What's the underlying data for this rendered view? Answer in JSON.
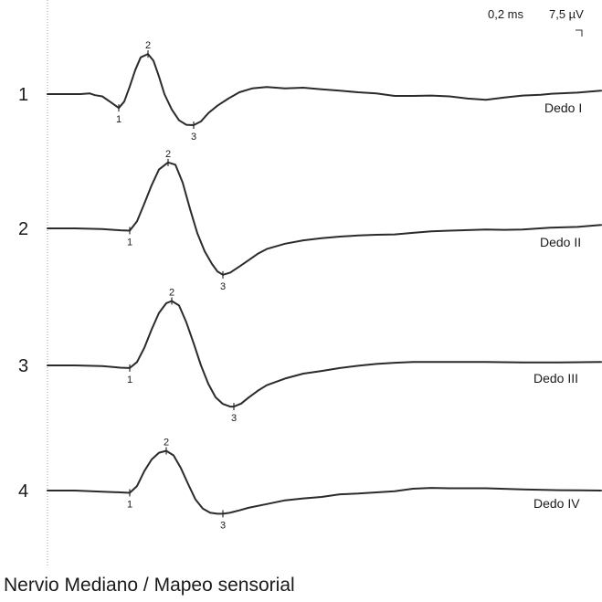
{
  "chart_data": {
    "type": "line",
    "title": "Nervio Mediano / Mapeo sensorial",
    "scale": {
      "time": "0,2 ms",
      "amplitude": "7,5 µV"
    },
    "grid": false,
    "x_unit": "ms",
    "y_unit": "µV",
    "xlim": [
      0,
      3.03
    ],
    "traces": [
      {
        "number": "1",
        "label": "Dedo I",
        "markers": [
          {
            "label": "1",
            "x": 0.39,
            "y": -3.7
          },
          {
            "label": "2",
            "x": 0.55,
            "y": 10.7
          },
          {
            "label": "3",
            "x": 0.8,
            "y": -8.3
          }
        ],
        "points": [
          [
            0.0,
            0.0
          ],
          [
            0.1,
            0.0
          ],
          [
            0.18,
            0.0
          ],
          [
            0.23,
            0.2
          ],
          [
            0.26,
            -0.3
          ],
          [
            0.3,
            -0.6
          ],
          [
            0.35,
            -2.3
          ],
          [
            0.39,
            -3.7
          ],
          [
            0.42,
            -2.0
          ],
          [
            0.45,
            2.0
          ],
          [
            0.48,
            6.4
          ],
          [
            0.51,
            9.8
          ],
          [
            0.55,
            10.7
          ],
          [
            0.58,
            8.9
          ],
          [
            0.61,
            4.7
          ],
          [
            0.64,
            0.0
          ],
          [
            0.68,
            -4.1
          ],
          [
            0.72,
            -7.0
          ],
          [
            0.76,
            -8.2
          ],
          [
            0.8,
            -8.3
          ],
          [
            0.84,
            -7.3
          ],
          [
            0.88,
            -5.1
          ],
          [
            0.93,
            -3.1
          ],
          [
            0.99,
            -1.2
          ],
          [
            1.05,
            0.5
          ],
          [
            1.12,
            1.5
          ],
          [
            1.2,
            1.9
          ],
          [
            1.3,
            1.5
          ],
          [
            1.4,
            1.7
          ],
          [
            1.5,
            1.3
          ],
          [
            1.6,
            0.9
          ],
          [
            1.7,
            0.5
          ],
          [
            1.8,
            0.2
          ],
          [
            1.9,
            -0.5
          ],
          [
            2.0,
            -0.5
          ],
          [
            2.1,
            -0.4
          ],
          [
            2.2,
            -0.6
          ],
          [
            2.3,
            -1.2
          ],
          [
            2.4,
            -1.5
          ],
          [
            2.5,
            -0.9
          ],
          [
            2.6,
            -0.4
          ],
          [
            2.7,
            -0.2
          ],
          [
            2.76,
            0.1
          ],
          [
            2.9,
            0.4
          ],
          [
            3.03,
            0.9
          ]
        ]
      },
      {
        "number": "2",
        "label": "Dedo II",
        "markers": [
          {
            "label": "1",
            "x": 0.45,
            "y": -0.6
          },
          {
            "label": "2",
            "x": 0.66,
            "y": 17.6
          },
          {
            "label": "3",
            "x": 0.96,
            "y": -12.4
          }
        ],
        "points": [
          [
            0.0,
            0.0
          ],
          [
            0.15,
            0.0
          ],
          [
            0.3,
            -0.2
          ],
          [
            0.4,
            -0.5
          ],
          [
            0.45,
            -0.6
          ],
          [
            0.49,
            1.9
          ],
          [
            0.53,
            6.6
          ],
          [
            0.57,
            11.5
          ],
          [
            0.61,
            15.7
          ],
          [
            0.66,
            17.6
          ],
          [
            0.7,
            17.0
          ],
          [
            0.74,
            12.2
          ],
          [
            0.78,
            5.2
          ],
          [
            0.82,
            -1.3
          ],
          [
            0.86,
            -6.1
          ],
          [
            0.9,
            -9.5
          ],
          [
            0.93,
            -11.5
          ],
          [
            0.96,
            -12.4
          ],
          [
            1.0,
            -11.8
          ],
          [
            1.05,
            -10.2
          ],
          [
            1.1,
            -8.5
          ],
          [
            1.15,
            -6.8
          ],
          [
            1.2,
            -5.5
          ],
          [
            1.3,
            -4.1
          ],
          [
            1.4,
            -3.2
          ],
          [
            1.5,
            -2.6
          ],
          [
            1.6,
            -2.2
          ],
          [
            1.7,
            -1.9
          ],
          [
            1.8,
            -1.7
          ],
          [
            1.9,
            -1.6
          ],
          [
            2.0,
            -1.2
          ],
          [
            2.1,
            -0.8
          ],
          [
            2.2,
            -0.6
          ],
          [
            2.4,
            -0.3
          ],
          [
            2.5,
            -0.4
          ],
          [
            2.6,
            -0.3
          ],
          [
            2.75,
            0.2
          ],
          [
            2.9,
            0.4
          ],
          [
            3.03,
            0.9
          ]
        ]
      },
      {
        "number": "3",
        "label": "Dedo III",
        "markers": [
          {
            "label": "1",
            "x": 0.45,
            "y": -0.7
          },
          {
            "label": "2",
            "x": 0.68,
            "y": 17.2
          },
          {
            "label": "3",
            "x": 1.02,
            "y": -11.0
          }
        ],
        "points": [
          [
            0.0,
            0.0
          ],
          [
            0.15,
            0.0
          ],
          [
            0.3,
            -0.2
          ],
          [
            0.4,
            -0.6
          ],
          [
            0.45,
            -0.7
          ],
          [
            0.49,
            0.9
          ],
          [
            0.53,
            4.7
          ],
          [
            0.57,
            9.6
          ],
          [
            0.61,
            14.0
          ],
          [
            0.65,
            16.6
          ],
          [
            0.68,
            17.2
          ],
          [
            0.72,
            16.0
          ],
          [
            0.76,
            11.5
          ],
          [
            0.8,
            5.9
          ],
          [
            0.84,
            0.0
          ],
          [
            0.88,
            -4.9
          ],
          [
            0.92,
            -8.5
          ],
          [
            0.96,
            -10.3
          ],
          [
            1.0,
            -11.0
          ],
          [
            1.02,
            -11.0
          ],
          [
            1.06,
            -10.2
          ],
          [
            1.1,
            -8.6
          ],
          [
            1.15,
            -6.8
          ],
          [
            1.2,
            -5.3
          ],
          [
            1.3,
            -3.5
          ],
          [
            1.4,
            -2.2
          ],
          [
            1.5,
            -1.5
          ],
          [
            1.6,
            -0.7
          ],
          [
            1.7,
            -0.1
          ],
          [
            1.8,
            0.4
          ],
          [
            1.9,
            0.7
          ],
          [
            2.0,
            0.9
          ],
          [
            2.2,
            0.9
          ],
          [
            2.4,
            0.9
          ],
          [
            2.6,
            0.8
          ],
          [
            2.8,
            0.8
          ],
          [
            3.03,
            0.9
          ]
        ]
      },
      {
        "number": "4",
        "label": "Dedo IV",
        "markers": [
          {
            "label": "1",
            "x": 0.45,
            "y": -0.6
          },
          {
            "label": "2",
            "x": 0.65,
            "y": 10.6
          },
          {
            "label": "3",
            "x": 0.96,
            "y": -6.2
          }
        ],
        "points": [
          [
            0.0,
            0.0
          ],
          [
            0.15,
            0.0
          ],
          [
            0.3,
            -0.3
          ],
          [
            0.4,
            -0.5
          ],
          [
            0.45,
            -0.6
          ],
          [
            0.49,
            1.2
          ],
          [
            0.53,
            5.2
          ],
          [
            0.57,
            8.3
          ],
          [
            0.61,
            10.1
          ],
          [
            0.65,
            10.6
          ],
          [
            0.69,
            9.4
          ],
          [
            0.73,
            6.0
          ],
          [
            0.77,
            1.7
          ],
          [
            0.81,
            -2.4
          ],
          [
            0.85,
            -4.8
          ],
          [
            0.89,
            -5.9
          ],
          [
            0.93,
            -6.2
          ],
          [
            0.96,
            -6.2
          ],
          [
            1.0,
            -5.9
          ],
          [
            1.05,
            -5.3
          ],
          [
            1.1,
            -4.6
          ],
          [
            1.2,
            -3.6
          ],
          [
            1.3,
            -2.6
          ],
          [
            1.4,
            -2.1
          ],
          [
            1.5,
            -1.7
          ],
          [
            1.6,
            -1.0
          ],
          [
            1.7,
            -0.8
          ],
          [
            1.8,
            -0.5
          ],
          [
            1.9,
            -0.2
          ],
          [
            2.0,
            0.5
          ],
          [
            2.1,
            0.7
          ],
          [
            2.2,
            0.6
          ],
          [
            2.4,
            0.6
          ],
          [
            2.6,
            0.3
          ],
          [
            2.8,
            0.1
          ],
          [
            3.03,
            0.0
          ]
        ]
      }
    ]
  }
}
